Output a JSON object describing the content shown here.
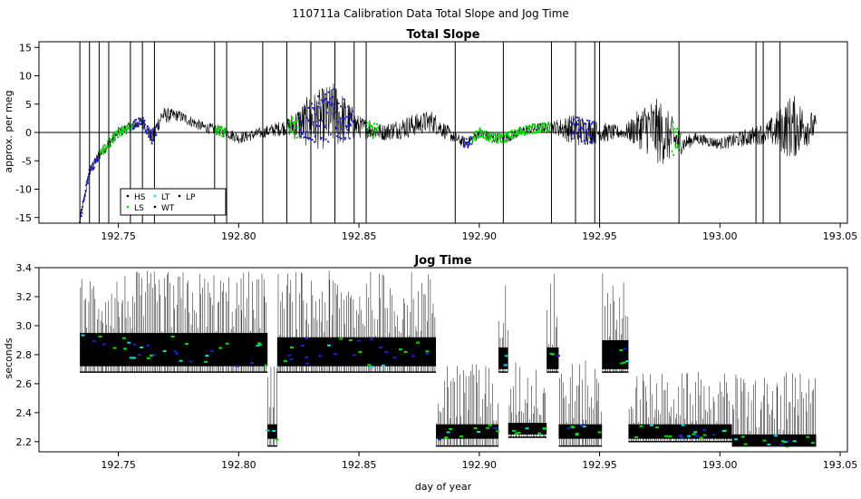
{
  "suptitle": "110711a   Calibration Data Total Slope and Jog Time",
  "colors": {
    "HS": "#000000",
    "LS": "#00e000",
    "LT": "#00e0e0",
    "WT": "#000000",
    "LP": "#000000",
    "blue": "#1f1fcf",
    "line": "#000000"
  },
  "chart_data": [
    {
      "type": "line",
      "title": "Total Slope",
      "xlabel": "",
      "ylabel": "approx. per meg",
      "xlim": [
        192.717,
        193.053
      ],
      "ylim": [
        -16,
        16
      ],
      "x_ticks": [
        "192.75",
        "192.80",
        "192.85",
        "192.90",
        "192.95",
        "193.00",
        "193.05"
      ],
      "x_tick_values": [
        192.75,
        192.8,
        192.85,
        192.9,
        192.95,
        193.0,
        193.05
      ],
      "y_ticks": [
        "-15",
        "-10",
        "-5",
        "0",
        "5",
        "10",
        "15"
      ],
      "y_tick_values": [
        -15,
        -10,
        -5,
        0,
        5,
        10,
        15
      ],
      "hline": 0,
      "legend": {
        "position": "bottom-left",
        "entries": [
          "HS",
          "LS",
          "LT",
          "WT",
          "LP"
        ]
      },
      "x": [
        192.734,
        192.738,
        192.742,
        192.746,
        192.75,
        192.755,
        192.76,
        192.764,
        192.768,
        192.775,
        192.785,
        192.795,
        192.8,
        192.81,
        192.82,
        192.83,
        192.84,
        192.85,
        192.86,
        192.87,
        192.88,
        192.89,
        192.895,
        192.9,
        192.905,
        192.91,
        192.92,
        192.93,
        192.94,
        192.95,
        192.96,
        192.97,
        192.975,
        192.98,
        192.985,
        192.99,
        193.0,
        193.01,
        193.02,
        193.03,
        193.04
      ],
      "y": [
        -15.5,
        -7,
        -4,
        -2,
        0,
        1,
        2,
        -1,
        3,
        3,
        1,
        0,
        -1,
        0,
        1,
        2,
        3,
        1,
        0,
        1,
        2,
        -1,
        -2,
        0,
        -1,
        -1,
        0.5,
        1,
        0.5,
        0,
        0,
        1,
        0,
        -1,
        -2,
        -1,
        -2,
        -1,
        0,
        1,
        1
      ],
      "spread": [
        0.8,
        1,
        1,
        1,
        1,
        1,
        1,
        1.5,
        1.5,
        1,
        1,
        1,
        1,
        1,
        1.5,
        5,
        6,
        2,
        1.5,
        2,
        2,
        1,
        1,
        1,
        1,
        1,
        1,
        1,
        3,
        2,
        1,
        5,
        6,
        4,
        1.5,
        1,
        1,
        1.5,
        2,
        6,
        2
      ],
      "blue_segments": [
        [
          192.734,
          192.742
        ],
        [
          192.755,
          192.766
        ],
        [
          192.825,
          192.848
        ],
        [
          192.893,
          192.897
        ],
        [
          192.938,
          192.948
        ]
      ],
      "green_segments": [
        [
          192.742,
          192.756
        ],
        [
          192.79,
          192.795
        ],
        [
          192.82,
          192.825
        ],
        [
          192.853,
          192.858
        ],
        [
          192.897,
          192.93
        ],
        [
          192.98,
          192.984
        ]
      ],
      "spikes": [
        192.734,
        192.738,
        192.742,
        192.746,
        192.755,
        192.76,
        192.765,
        192.79,
        192.795,
        192.81,
        192.82,
        192.83,
        192.84,
        192.848,
        192.853,
        192.89,
        192.91,
        192.93,
        192.94,
        192.948,
        192.95,
        192.983,
        193.015,
        193.018,
        193.025
      ]
    },
    {
      "type": "line",
      "title": "Jog Time",
      "xlabel": "day of year",
      "ylabel": "seconds",
      "xlim": [
        192.717,
        193.053
      ],
      "ylim": [
        2.13,
        3.4
      ],
      "x_ticks": [
        "192.75",
        "192.80",
        "192.85",
        "192.90",
        "192.95",
        "193.00",
        "193.05"
      ],
      "x_tick_values": [
        192.75,
        192.8,
        192.85,
        192.9,
        192.95,
        193.0,
        193.05
      ],
      "y_ticks": [
        "2.2",
        "2.4",
        "2.6",
        "2.8",
        "3.0",
        "3.2",
        "3.4"
      ],
      "y_tick_values": [
        2.2,
        2.4,
        2.6,
        2.8,
        3.0,
        3.2,
        3.4
      ],
      "segments": [
        {
          "x": [
            192.734,
            192.812
          ],
          "base": 2.68,
          "band": [
            2.72,
            2.95
          ],
          "peak": 3.38
        },
        {
          "x": [
            192.812,
            192.816
          ],
          "base": 2.17,
          "band": [
            2.22,
            2.32
          ],
          "peak": 2.75
        },
        {
          "x": [
            192.816,
            192.882
          ],
          "base": 2.68,
          "band": [
            2.72,
            2.92
          ],
          "peak": 3.38
        },
        {
          "x": [
            192.882,
            192.908
          ],
          "base": 2.17,
          "band": [
            2.22,
            2.32
          ],
          "peak": 2.76
        },
        {
          "x": [
            192.908,
            192.912
          ],
          "base": 2.68,
          "band": [
            2.7,
            2.85
          ],
          "peak": 3.38
        },
        {
          "x": [
            192.912,
            192.928
          ],
          "base": 2.23,
          "band": [
            2.25,
            2.33
          ],
          "peak": 2.76
        },
        {
          "x": [
            192.928,
            192.933
          ],
          "base": 2.68,
          "band": [
            2.7,
            2.85
          ],
          "peak": 3.38
        },
        {
          "x": [
            192.933,
            192.951
          ],
          "base": 2.17,
          "band": [
            2.22,
            2.32
          ],
          "peak": 2.76
        },
        {
          "x": [
            192.951,
            192.962
          ],
          "base": 2.68,
          "band": [
            2.7,
            2.9
          ],
          "peak": 3.38
        },
        {
          "x": [
            192.962,
            193.005
          ],
          "base": 2.2,
          "band": [
            2.22,
            2.32
          ],
          "peak": 2.68
        },
        {
          "x": [
            193.005,
            193.04
          ],
          "base": 2.17,
          "band": [
            2.17,
            2.25
          ],
          "peak": 2.68
        }
      ]
    }
  ]
}
